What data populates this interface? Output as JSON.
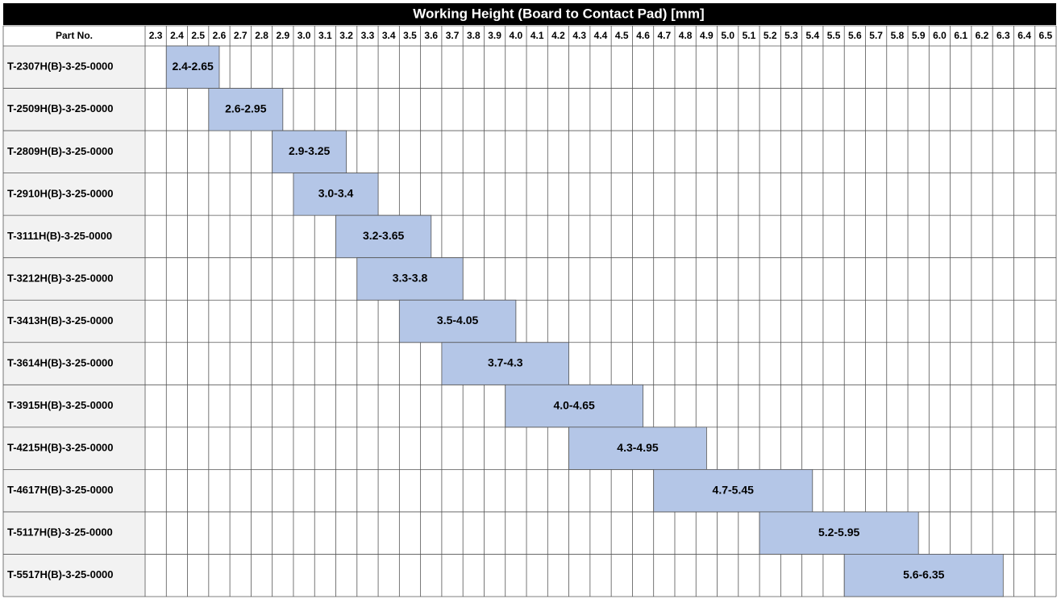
{
  "chart_data": {
    "type": "range-bar",
    "title": "Working Height (Board to Contact Pad) [mm]",
    "category_header": "Part No.",
    "categories": [
      "T-2307H(B)-3-25-0000",
      "T-2509H(B)-3-25-0000",
      "T-2809H(B)-3-25-0000",
      "T-2910H(B)-3-25-0000",
      "T-3111H(B)-3-25-0000",
      "T-3212H(B)-3-25-0000",
      "T-3413H(B)-3-25-0000",
      "T-3614H(B)-3-25-0000",
      "T-3915H(B)-3-25-0000",
      "T-4215H(B)-3-25-0000",
      "T-4617H(B)-3-25-0000",
      "T-5117H(B)-3-25-0000",
      "T-5517H(B)-3-25-0000"
    ],
    "start": [
      2.4,
      2.6,
      2.9,
      3.0,
      3.2,
      3.3,
      3.5,
      3.7,
      4.0,
      4.3,
      4.7,
      5.2,
      5.6
    ],
    "end": [
      2.65,
      2.95,
      3.25,
      3.4,
      3.65,
      3.8,
      4.05,
      4.3,
      4.65,
      4.95,
      5.45,
      5.95,
      6.35
    ],
    "value_labels": [
      "2.4-2.65",
      "2.6-2.95",
      "2.9-3.25",
      "3.0-3.4",
      "3.2-3.65",
      "3.3-3.8",
      "3.5-4.05",
      "3.7-4.3",
      "4.0-4.65",
      "4.3-4.95",
      "4.7-5.45",
      "5.2-5.95",
      "5.6-6.35"
    ],
    "color": "#b4c6e7",
    "xlim": [
      2.3,
      6.6
    ],
    "xticks": [
      2.3,
      2.4,
      2.5,
      2.6,
      2.7,
      2.8,
      2.9,
      {
        "value": 3,
        "label": "3.0"
      },
      3.1,
      3.2,
      3.3,
      3.4,
      3.5,
      3.6,
      3.7,
      3.8,
      3.9,
      {
        "value": 4,
        "label": "4.0"
      },
      4.1,
      4.2,
      4.3,
      4.4,
      4.5,
      4.6,
      4.7,
      4.8,
      4.9,
      {
        "value": 5,
        "label": "5.0"
      },
      5.1,
      5.2,
      5.3,
      5.4,
      5.5,
      5.6,
      5.7,
      5.8,
      5.9,
      {
        "value": 6,
        "label": "6.0"
      },
      6.1,
      6.2,
      6.3,
      6.4,
      6.5
    ],
    "grid": true
  }
}
